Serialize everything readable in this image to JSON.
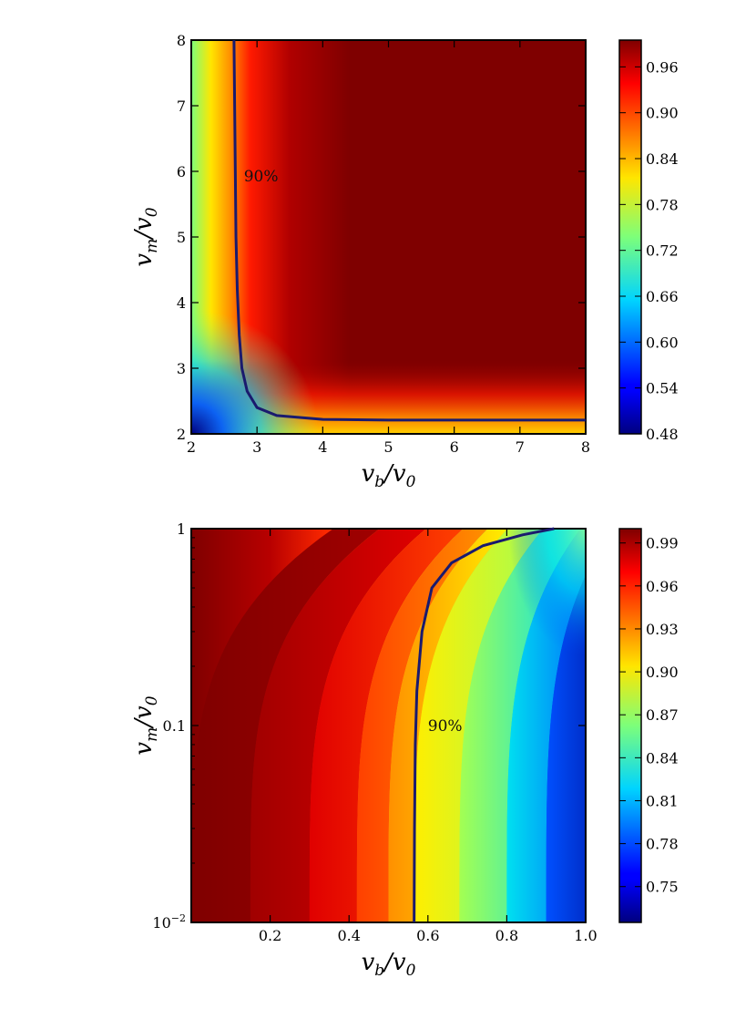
{
  "chart_data": [
    {
      "type": "heatmap",
      "xlabel": "v_b/v_0",
      "ylabel": "v_m/v_0",
      "xlim": [
        2,
        8
      ],
      "ylim": [
        2,
        8
      ],
      "xticks": [
        "2",
        "3",
        "4",
        "5",
        "6",
        "7",
        "8"
      ],
      "yticks": [
        "2",
        "3",
        "4",
        "5",
        "6",
        "7",
        "8"
      ],
      "colorbar_ticks": [
        "0.48",
        "0.54",
        "0.60",
        "0.66",
        "0.72",
        "0.78",
        "0.84",
        "0.90",
        "0.96"
      ],
      "colorbar_range": [
        0.48,
        0.995
      ],
      "colormap": "jet",
      "contour": {
        "level_label": "90%",
        "points": [
          [
            2.65,
            8.0
          ],
          [
            2.66,
            7.0
          ],
          [
            2.67,
            6.0
          ],
          [
            2.68,
            5.0
          ],
          [
            2.7,
            4.2
          ],
          [
            2.73,
            3.5
          ],
          [
            2.77,
            3.0
          ],
          [
            2.85,
            2.65
          ],
          [
            3.0,
            2.4
          ],
          [
            3.3,
            2.28
          ],
          [
            4.0,
            2.22
          ],
          [
            5.0,
            2.21
          ],
          [
            8.0,
            2.21
          ]
        ]
      }
    },
    {
      "type": "heatmap",
      "xlabel": "v_b/v_0",
      "ylabel": "v_m/v_0",
      "xlim": [
        0.0,
        1.0
      ],
      "ylim": [
        0.01,
        1
      ],
      "yscale": "log",
      "xticks": [
        "0.2",
        "0.4",
        "0.6",
        "0.8",
        "1.0"
      ],
      "yticks": [
        "10^-2",
        "0.1",
        "1"
      ],
      "colorbar_ticks": [
        "0.75",
        "0.78",
        "0.81",
        "0.84",
        "0.87",
        "0.90",
        "0.93",
        "0.96",
        "0.99"
      ],
      "colorbar_range": [
        0.725,
        1.0
      ],
      "colormap": "jet",
      "contour": {
        "level_label": "90%",
        "points": [
          [
            0.565,
            0.01
          ],
          [
            0.566,
            0.03
          ],
          [
            0.568,
            0.08
          ],
          [
            0.572,
            0.15
          ],
          [
            0.585,
            0.3
          ],
          [
            0.61,
            0.5
          ],
          [
            0.66,
            0.67
          ],
          [
            0.74,
            0.82
          ],
          [
            0.84,
            0.93
          ],
          [
            0.92,
            1.0
          ]
        ]
      }
    }
  ]
}
